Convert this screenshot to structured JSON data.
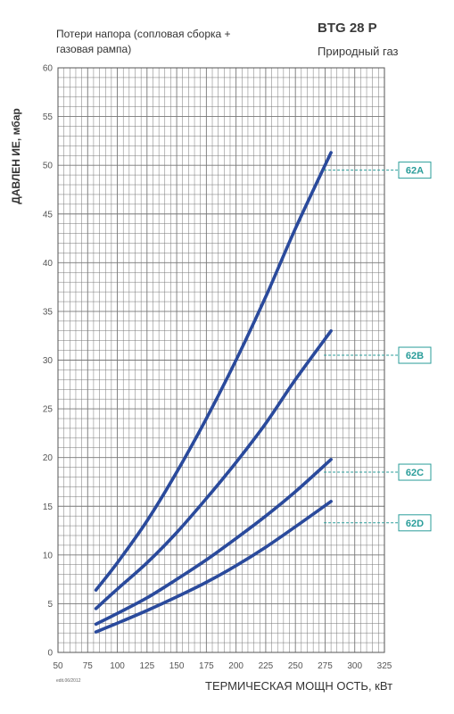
{
  "chart_data": {
    "type": "line",
    "title_left": "Потери напора (сопловая сборка + газовая рампа)",
    "model": "BTG 28 P",
    "fuel": "Природный газ",
    "ylabel": "ДАВЛЕН ИЕ, мбар",
    "xlabel": "ТЕРМИЧЕСКАЯ МОЩН ОСТЬ, кВт",
    "footnote": "edit.06/2012",
    "xlim": [
      50,
      325
    ],
    "ylim": [
      0,
      60
    ],
    "x_ticks": [
      "50",
      "75",
      "100",
      "125",
      "150",
      "175",
      "200",
      "225",
      "250",
      "275",
      "300",
      "325"
    ],
    "y_ticks": [
      "0",
      "5",
      "10",
      "15",
      "20",
      "25",
      "30",
      "35",
      "40",
      "45",
      "50",
      "55",
      "60"
    ],
    "grid": true,
    "series": [
      {
        "name": "62A",
        "x": [
          82,
          100,
          125,
          150,
          175,
          200,
          225,
          250,
          280
        ],
        "y": [
          6.4,
          9.2,
          13.5,
          18.5,
          24,
          30,
          36.5,
          43.5,
          51.3
        ]
      },
      {
        "name": "62B",
        "x": [
          82,
          100,
          125,
          150,
          175,
          200,
          225,
          250,
          280
        ],
        "y": [
          4.5,
          6.5,
          9.2,
          12.3,
          15.8,
          19.5,
          23.5,
          28,
          33
        ]
      },
      {
        "name": "62C",
        "x": [
          82,
          100,
          125,
          150,
          175,
          200,
          225,
          250,
          280
        ],
        "y": [
          2.9,
          4.0,
          5.6,
          7.5,
          9.5,
          11.7,
          14.0,
          16.5,
          19.8
        ]
      },
      {
        "name": "62D",
        "x": [
          82,
          100,
          125,
          150,
          175,
          200,
          225,
          250,
          280
        ],
        "y": [
          2.1,
          3.0,
          4.3,
          5.7,
          7.2,
          8.9,
          10.8,
          12.9,
          15.5
        ]
      }
    ],
    "label_y": [
      49.5,
      30.5,
      18.5,
      13.3
    ],
    "colors": {
      "curve": "#2a4a9c",
      "label": "#2a9d9a",
      "grid": "#777777"
    }
  }
}
